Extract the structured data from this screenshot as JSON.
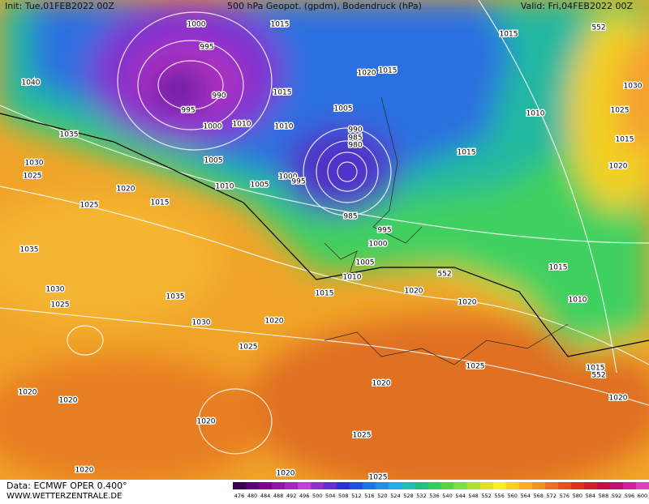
{
  "header": {
    "init": "Init: Tue,01FEB2022 00Z",
    "title": "500 hPa Geopot. (gpdm), Bodendruck (hPa)",
    "valid": "Valid: Fri,04FEB2022 00Z"
  },
  "footer": {
    "source": "Data: ECMWF OPER 0.400°",
    "site": "WWW.WETTERZENTRALE.DE"
  },
  "legend": {
    "labels": [
      476,
      480,
      484,
      488,
      492,
      496,
      500,
      504,
      508,
      512,
      516,
      520,
      524,
      528,
      532,
      536,
      540,
      544,
      548,
      552,
      556,
      560,
      564,
      568,
      572,
      576,
      580,
      584,
      588,
      592,
      596,
      600
    ]
  },
  "isobar_labels": [
    "1000",
    "1015",
    "995",
    "990",
    "995",
    "1000",
    "1010",
    "1015",
    "1010",
    "1040",
    "1020",
    "1015",
    "1015",
    "552",
    "1030",
    "1025",
    "1010",
    "1015",
    "1020",
    "1015",
    "1005",
    "990",
    "985",
    "980",
    "1000",
    "995",
    "1005",
    "1010",
    "1015",
    "1005",
    "1035",
    "1030",
    "1025",
    "1020",
    "1025",
    "985",
    "995",
    "1000",
    "1005",
    "1010",
    "1015",
    "1020",
    "552",
    "1020",
    "1015",
    "1010",
    "1035",
    "1030",
    "1025",
    "1035",
    "1030",
    "1020",
    "1025",
    "1025",
    "1020",
    "1015",
    "552",
    "1020",
    "1020",
    "1020",
    "1020",
    "1025",
    "1020",
    "1020",
    "1025"
  ]
}
